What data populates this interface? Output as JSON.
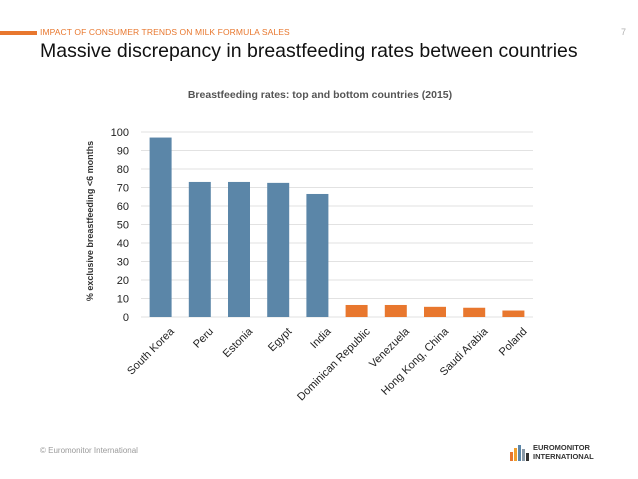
{
  "header": {
    "section_label": "IMPACT OF CONSUMER TRENDS ON MILK FORMULA SALES",
    "page_number": "7",
    "title": "Massive discrepancy in breastfeeding rates between countries"
  },
  "footer": {
    "copyright": "© Euromonitor International",
    "logo_line1": "EUROMONITOR",
    "logo_line2": "INTERNATIONAL"
  },
  "colors": {
    "top_bar": "#5b86a8",
    "bottom_bar": "#e8772e",
    "accent": "#e8772e",
    "grid": "#d9d9d9"
  },
  "chart_data": {
    "type": "bar",
    "title": "Breastfeeding rates: top and bottom countries (2015)",
    "xlabel": "",
    "ylabel": "% exclusive breastfeeding <6 months",
    "ylim": [
      0,
      100
    ],
    "yticks": [
      0,
      10,
      20,
      30,
      40,
      50,
      60,
      70,
      80,
      90,
      100
    ],
    "grid": true,
    "legend": "none",
    "categories": [
      "South Korea",
      "Peru",
      "Estonia",
      "Egypt",
      "India",
      "Dominican Republic",
      "Venezuela",
      "Hong Kong, China",
      "Saudi Arabia",
      "Poland"
    ],
    "values": [
      97,
      73,
      73,
      72.5,
      66.5,
      6.5,
      6.5,
      5.5,
      5,
      3.5
    ],
    "bar_groups": [
      "top",
      "top",
      "top",
      "top",
      "top",
      "bottom",
      "bottom",
      "bottom",
      "bottom",
      "bottom"
    ]
  }
}
